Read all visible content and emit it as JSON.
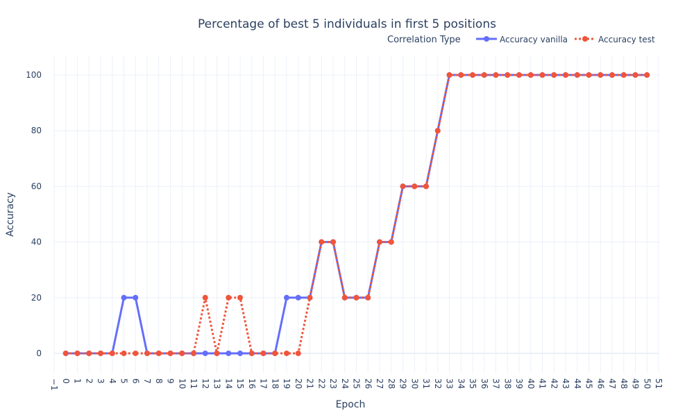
{
  "chart_data": {
    "type": "line",
    "title": "Percentage of best 5 individuals in first 5 positions",
    "xlabel": "Epoch",
    "ylabel": "Accuracy",
    "legend_title": "Correlation Type",
    "legend_position": "top-right",
    "xlim": [
      -1,
      51
    ],
    "ylim": [
      -7,
      107
    ],
    "x_ticks": [
      -1,
      0,
      1,
      2,
      3,
      4,
      5,
      6,
      7,
      8,
      9,
      10,
      11,
      12,
      13,
      14,
      15,
      16,
      17,
      18,
      19,
      20,
      21,
      22,
      23,
      24,
      25,
      26,
      27,
      28,
      29,
      30,
      31,
      32,
      33,
      34,
      35,
      36,
      37,
      38,
      39,
      40,
      41,
      42,
      43,
      44,
      45,
      46,
      47,
      48,
      49,
      50,
      51
    ],
    "x_tick_labels": [
      "−1",
      "0",
      "1",
      "2",
      "3",
      "4",
      "5",
      "6",
      "7",
      "8",
      "9",
      "10",
      "11",
      "12",
      "13",
      "14",
      "15",
      "16",
      "17",
      "18",
      "19",
      "20",
      "21",
      "22",
      "23",
      "24",
      "25",
      "26",
      "27",
      "28",
      "29",
      "30",
      "31",
      "32",
      "33",
      "34",
      "35",
      "36",
      "37",
      "38",
      "39",
      "40",
      "41",
      "42",
      "43",
      "44",
      "45",
      "46",
      "47",
      "48",
      "49",
      "50",
      "51"
    ],
    "y_ticks": [
      0,
      20,
      40,
      60,
      80,
      100
    ],
    "y_tick_labels": [
      "0",
      "20",
      "40",
      "60",
      "80",
      "100"
    ],
    "grid": true,
    "x": [
      0,
      1,
      2,
      3,
      4,
      5,
      6,
      7,
      8,
      9,
      10,
      11,
      12,
      13,
      14,
      15,
      16,
      17,
      18,
      19,
      20,
      21,
      22,
      23,
      24,
      25,
      26,
      27,
      28,
      29,
      30,
      31,
      32,
      33,
      34,
      35,
      36,
      37,
      38,
      39,
      40,
      41,
      42,
      43,
      44,
      45,
      46,
      47,
      48,
      49,
      50
    ],
    "series": [
      {
        "name": "Accuracy vanilla",
        "color": "#636efa",
        "dash": "solid",
        "values": [
          0,
          0,
          0,
          0,
          0,
          20,
          20,
          0,
          0,
          0,
          0,
          0,
          0,
          0,
          0,
          0,
          0,
          0,
          0,
          20,
          20,
          20,
          40,
          40,
          20,
          20,
          20,
          40,
          40,
          60,
          60,
          60,
          80,
          100,
          100,
          100,
          100,
          100,
          100,
          100,
          100,
          100,
          100,
          100,
          100,
          100,
          100,
          100,
          100,
          100,
          100
        ]
      },
      {
        "name": "Accuracy test",
        "color": "#ef553b",
        "dash": "dot",
        "values": [
          0,
          0,
          0,
          0,
          0,
          0,
          0,
          0,
          0,
          0,
          0,
          0,
          20,
          0,
          20,
          20,
          0,
          0,
          0,
          0,
          0,
          20,
          40,
          40,
          20,
          20,
          20,
          40,
          40,
          60,
          60,
          60,
          80,
          100,
          100,
          100,
          100,
          100,
          100,
          100,
          100,
          100,
          100,
          100,
          100,
          100,
          100,
          100,
          100,
          100,
          100
        ]
      }
    ]
  },
  "colors": {
    "text": "#2a3f5f",
    "grid": "#ebf0f8",
    "axis_zero": "#ebf0f8"
  }
}
